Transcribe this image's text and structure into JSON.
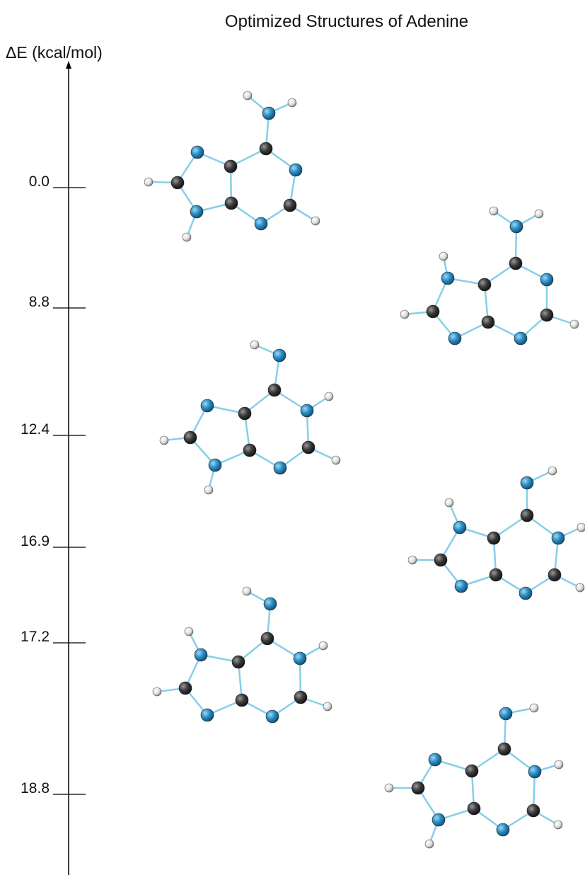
{
  "title": "Optimized Structures of Adenine",
  "axis_label": "ΔE (kcal/mol)",
  "levels": [
    "0.0",
    "8.8",
    "12.4",
    "16.9",
    "17.2",
    "18.8"
  ]
}
